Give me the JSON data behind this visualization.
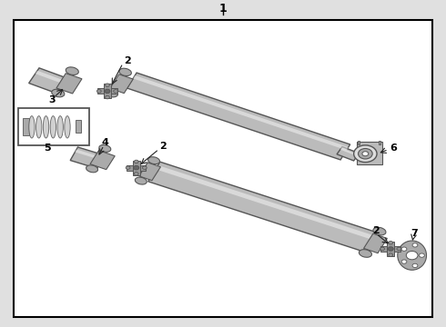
{
  "bg_color": "#e0e0e0",
  "border_color": "#000000",
  "line_color": "#555555",
  "part_color": "#aaaaaa",
  "dark_color": "#222222",
  "shaft_color": "#bbbbbb",
  "figsize": [
    4.9,
    3.6
  ],
  "dpi": 100,
  "label_fontsize": 8,
  "title_fontsize": 9
}
